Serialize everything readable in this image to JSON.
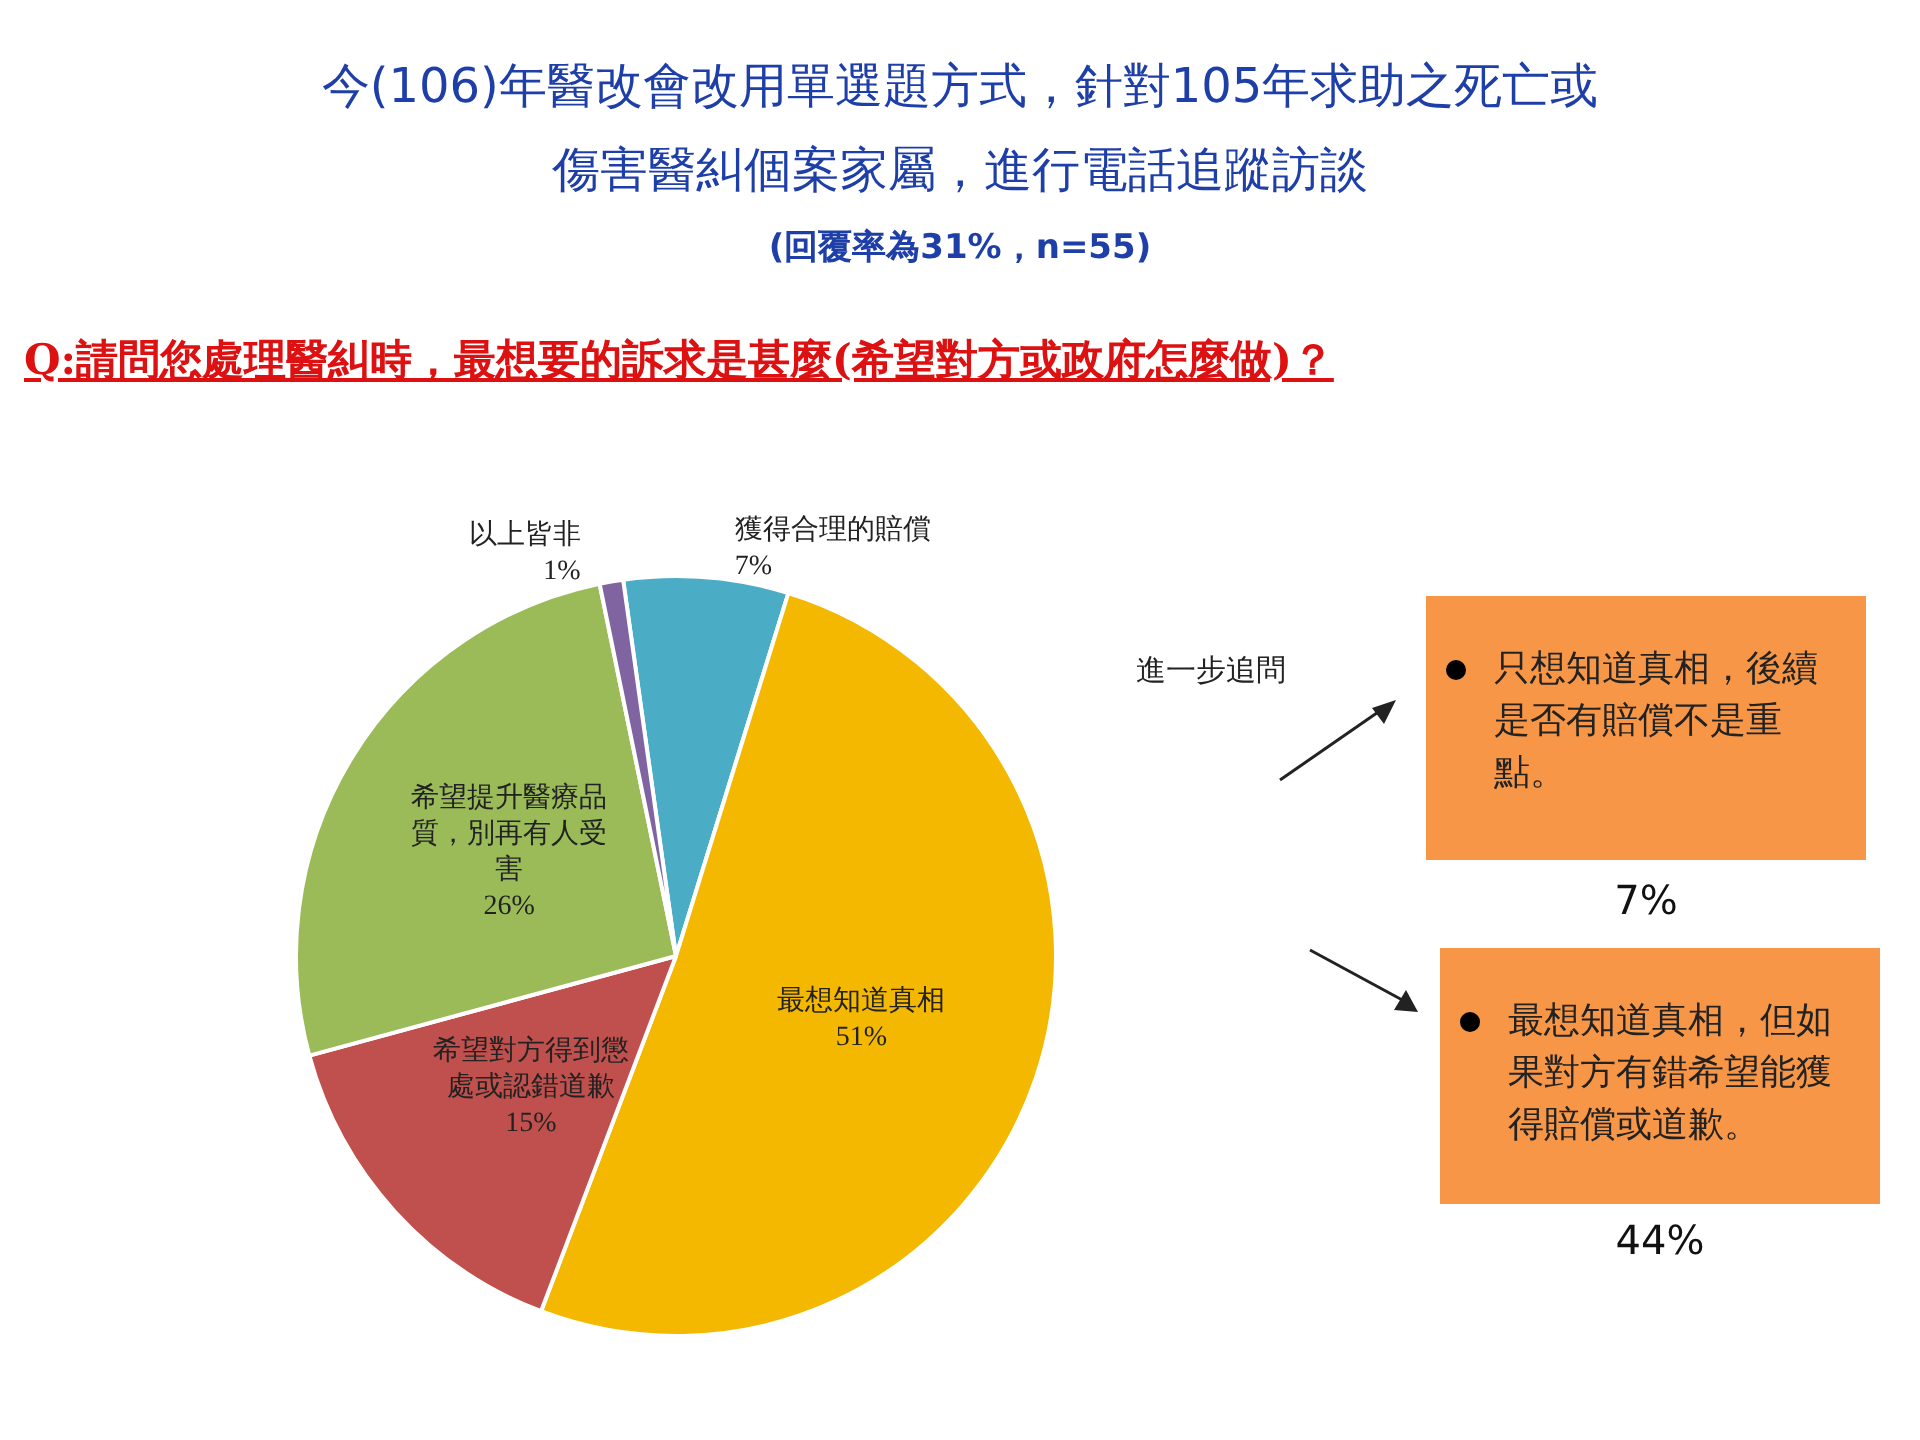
{
  "chart_data": {
    "type": "pie",
    "title": "今(106)年醫改會改用單選題方式，針對105年求助之死亡或傷害醫糾個案家屬，進行電話追蹤訪談",
    "subtitle": "(回覆率為31%，n=55)",
    "categories": [
      "獲得合理的賠償",
      "最想知道真相",
      "希望對方得到懲處或認錯道歉",
      "希望提升醫療品質，別再有人受害",
      "以上皆非"
    ],
    "values": [
      7,
      51,
      15,
      26,
      1
    ],
    "colors": [
      "#4bacc6",
      "#f5b800",
      "#c0504d",
      "#9bbb59",
      "#8064a2"
    ],
    "value_labels": [
      "7%",
      "51%",
      "15%",
      "26%",
      "1%"
    ],
    "legend": false,
    "annotations": [
      "Q:請問您處理醫糾時，最想要的訴求是甚麼(希望對方或政府怎麼做)？",
      "進一步追問",
      "只想知道真相，後續是否有賠償不是重點。",
      "7%",
      "最想知道真相，但如果對方有錯希望能獲得賠償或道歉。",
      "44%"
    ]
  }
}
